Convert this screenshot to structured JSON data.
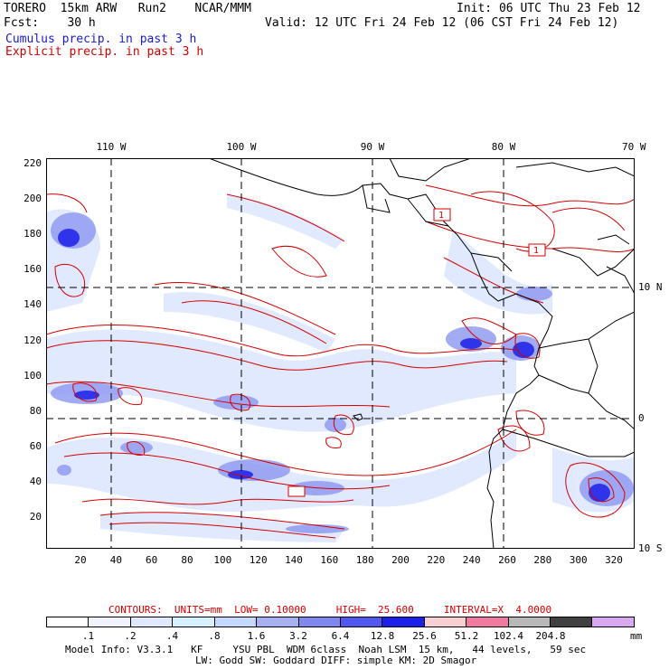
{
  "header": {
    "model": "TORERO  15km ARW   Run2    NCAR/MMM",
    "init": "Init: 06 UTC Thu 23 Feb 12",
    "fcst": "Fcst:    30 h",
    "valid": "Valid: 12 UTC Fri 24 Feb 12 (06 CST Fri 24 Feb 12)",
    "cumulus": "Cumulus precip. in past 3 h",
    "explicit": "Explicit precip. in past 3 h"
  },
  "colors": {
    "cumulus": "#1a1acc",
    "explicit": "#d40000",
    "coast": "#000000"
  },
  "axes": {
    "x_ticks": [
      "20",
      "40",
      "60",
      "80",
      "100",
      "120",
      "140",
      "160",
      "180",
      "200",
      "220",
      "240",
      "260",
      "280",
      "300",
      "320"
    ],
    "y_ticks": [
      "220",
      "200",
      "180",
      "160",
      "140",
      "120",
      "100",
      "80",
      "60",
      "40",
      "20"
    ],
    "top_lon": [
      "110 W",
      "100 W",
      "90 W",
      "80 W",
      "70 W"
    ],
    "right_lat": [
      "10 N",
      "0",
      "10 S"
    ]
  },
  "contours": {
    "title": "CONTOURS:",
    "units": "UNITS=mm",
    "low": "LOW= 0.10000",
    "high": "HIGH=  25.600",
    "interval": "INTERVAL=X  4.0000"
  },
  "colorbar": {
    "colors": [
      "#ffffff",
      "#f0f3ff",
      "#dfe8ff",
      "#d6f0ff",
      "#c4d8ff",
      "#a8b0f0",
      "#8088f0",
      "#5058f0",
      "#1c20e8",
      "#f8d0d0",
      "#f07aa0",
      "#b8b8b8",
      "#404040",
      "#d8a8f0"
    ],
    "labels": [
      ".1",
      ".2",
      ".4",
      ".8",
      "1.6",
      "3.2",
      "6.4",
      "12.8",
      "25.6",
      "51.2",
      "102.4",
      "204.8"
    ],
    "unit": "mm"
  },
  "model_info": {
    "line1": "Model Info: V3.3.1   KF     YSU PBL  WDM 6class  Noah LSM  15 km,   44 levels,   59 sec",
    "line2": "LW: Godd SW: Goddard DIFF: simple KM: 2D Smagor"
  },
  "low_markers": [
    "1",
    "1"
  ]
}
